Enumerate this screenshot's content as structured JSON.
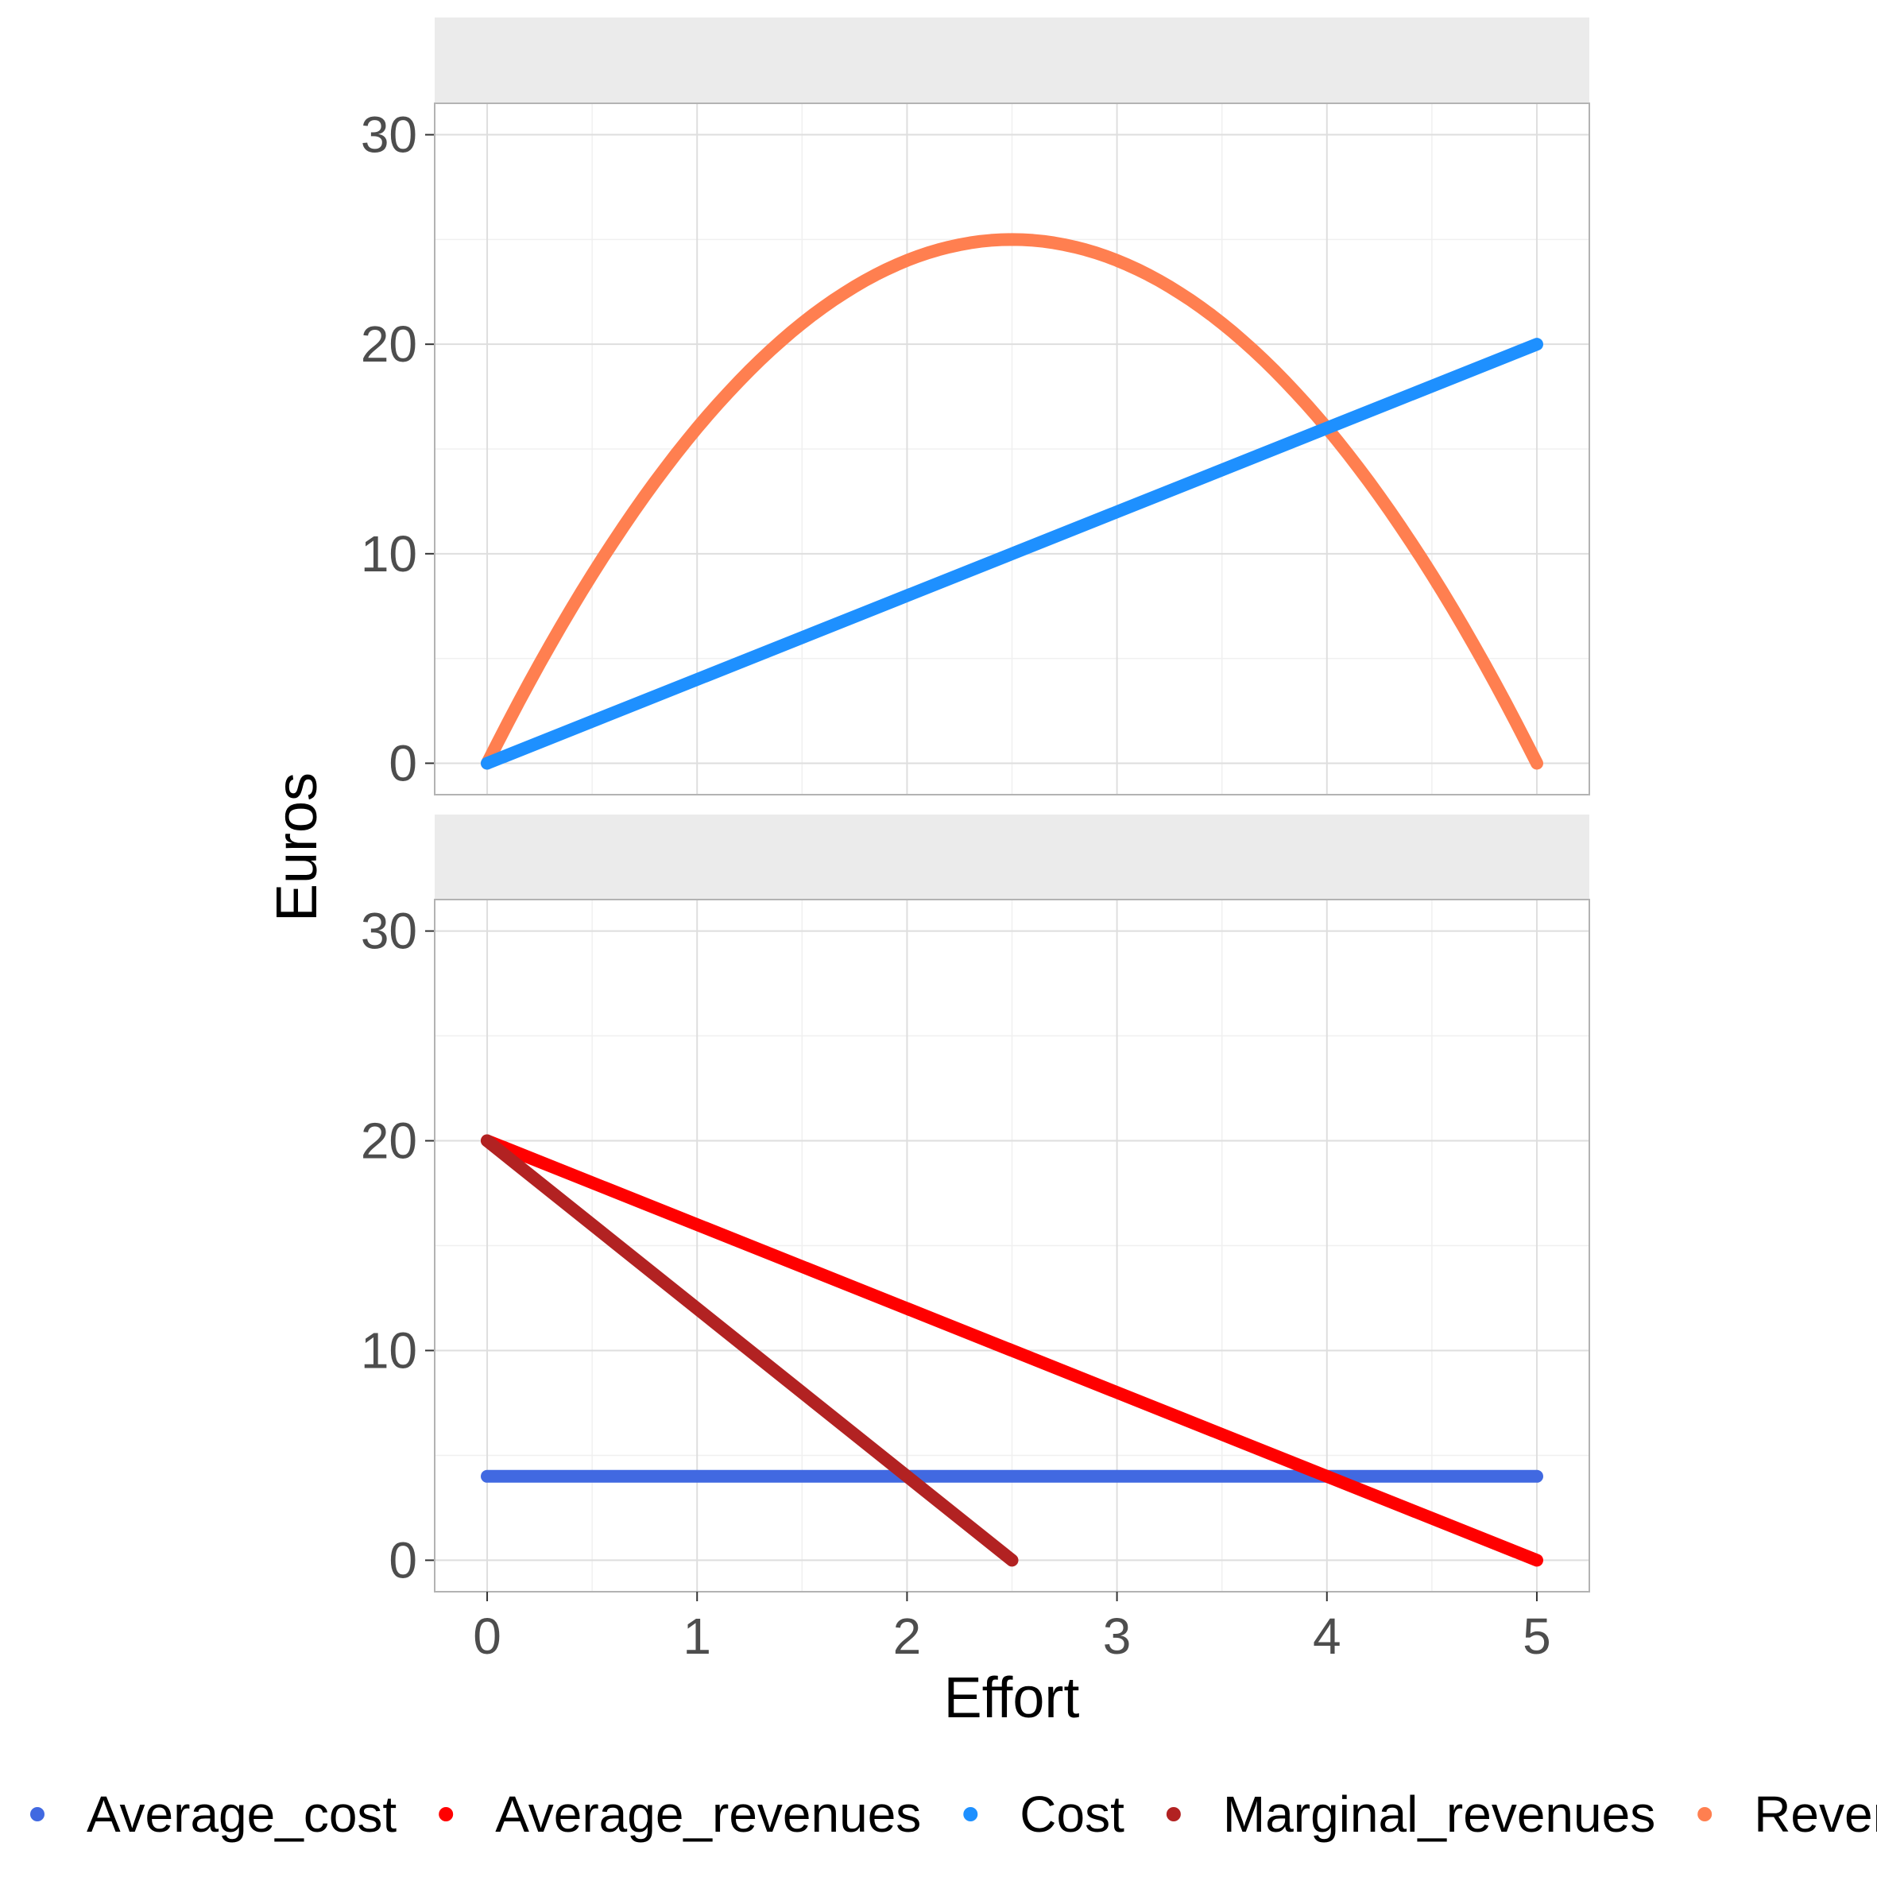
{
  "chart_data": {
    "type": "line",
    "xlabel": "Effort",
    "ylabel": "Euros",
    "xlim": [
      -0.25,
      5.25
    ],
    "ylim": [
      -1.5,
      31.5
    ],
    "x_ticks": [
      0,
      1,
      2,
      3,
      4,
      5
    ],
    "y_ticks": [
      0,
      10,
      20,
      30
    ],
    "grid": true,
    "legend_position": "bottom",
    "legend": [
      {
        "name": "Average_cost",
        "color": "#4169E1"
      },
      {
        "name": "Average_revenues",
        "color": "#FF0000"
      },
      {
        "name": "Cost",
        "color": "#1E90FF"
      },
      {
        "name": "Marginal_revenues",
        "color": "#B22222"
      },
      {
        "name": "Revenues",
        "color": "#FF7F50"
      }
    ],
    "panels": [
      {
        "strip_label": "",
        "series": [
          {
            "name": "Revenues",
            "color": "#FF7F50",
            "function": "revenues",
            "x_range": [
              0,
              5
            ]
          },
          {
            "name": "Cost",
            "color": "#1E90FF",
            "x": [
              0,
              5
            ],
            "y": [
              0,
              20
            ]
          }
        ]
      },
      {
        "strip_label": "",
        "series": [
          {
            "name": "Average_cost",
            "color": "#4169E1",
            "x": [
              0,
              5
            ],
            "y": [
              4,
              4
            ]
          },
          {
            "name": "Average_revenues",
            "color": "#FF0000",
            "x": [
              0,
              5
            ],
            "y": [
              20,
              0
            ]
          },
          {
            "name": "Marginal_revenues",
            "color": "#B22222",
            "x": [
              0,
              2.5
            ],
            "y": [
              20,
              0
            ]
          }
        ]
      }
    ]
  }
}
